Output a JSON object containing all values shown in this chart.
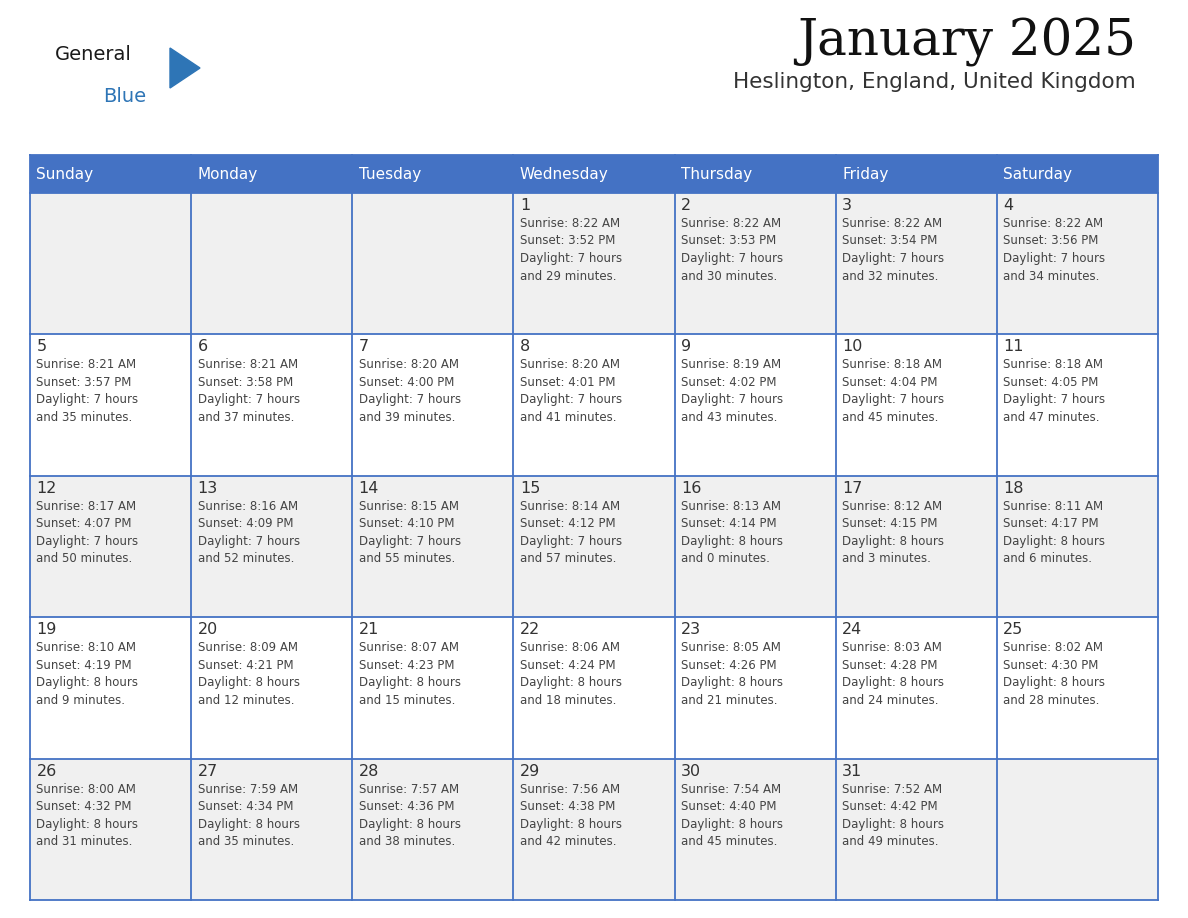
{
  "title": "January 2025",
  "subtitle": "Heslington, England, United Kingdom",
  "header_bg_color": "#4472C4",
  "header_text_color": "#FFFFFF",
  "day_names": [
    "Sunday",
    "Monday",
    "Tuesday",
    "Wednesday",
    "Thursday",
    "Friday",
    "Saturday"
  ],
  "row_bg_colors": [
    "#F0F0F0",
    "#FFFFFF",
    "#F0F0F0",
    "#FFFFFF",
    "#F0F0F0"
  ],
  "border_color": "#4472C4",
  "cell_text_color": "#444444",
  "day_number_color": "#333333",
  "logo_general_color": "#1a1a1a",
  "logo_blue_color": "#2E75B6",
  "logo_triangle_color": "#2E75B6",
  "calendar_data": [
    [
      {
        "day": null,
        "info": ""
      },
      {
        "day": null,
        "info": ""
      },
      {
        "day": null,
        "info": ""
      },
      {
        "day": 1,
        "info": "Sunrise: 8:22 AM\nSunset: 3:52 PM\nDaylight: 7 hours\nand 29 minutes."
      },
      {
        "day": 2,
        "info": "Sunrise: 8:22 AM\nSunset: 3:53 PM\nDaylight: 7 hours\nand 30 minutes."
      },
      {
        "day": 3,
        "info": "Sunrise: 8:22 AM\nSunset: 3:54 PM\nDaylight: 7 hours\nand 32 minutes."
      },
      {
        "day": 4,
        "info": "Sunrise: 8:22 AM\nSunset: 3:56 PM\nDaylight: 7 hours\nand 34 minutes."
      }
    ],
    [
      {
        "day": 5,
        "info": "Sunrise: 8:21 AM\nSunset: 3:57 PM\nDaylight: 7 hours\nand 35 minutes."
      },
      {
        "day": 6,
        "info": "Sunrise: 8:21 AM\nSunset: 3:58 PM\nDaylight: 7 hours\nand 37 minutes."
      },
      {
        "day": 7,
        "info": "Sunrise: 8:20 AM\nSunset: 4:00 PM\nDaylight: 7 hours\nand 39 minutes."
      },
      {
        "day": 8,
        "info": "Sunrise: 8:20 AM\nSunset: 4:01 PM\nDaylight: 7 hours\nand 41 minutes."
      },
      {
        "day": 9,
        "info": "Sunrise: 8:19 AM\nSunset: 4:02 PM\nDaylight: 7 hours\nand 43 minutes."
      },
      {
        "day": 10,
        "info": "Sunrise: 8:18 AM\nSunset: 4:04 PM\nDaylight: 7 hours\nand 45 minutes."
      },
      {
        "day": 11,
        "info": "Sunrise: 8:18 AM\nSunset: 4:05 PM\nDaylight: 7 hours\nand 47 minutes."
      }
    ],
    [
      {
        "day": 12,
        "info": "Sunrise: 8:17 AM\nSunset: 4:07 PM\nDaylight: 7 hours\nand 50 minutes."
      },
      {
        "day": 13,
        "info": "Sunrise: 8:16 AM\nSunset: 4:09 PM\nDaylight: 7 hours\nand 52 minutes."
      },
      {
        "day": 14,
        "info": "Sunrise: 8:15 AM\nSunset: 4:10 PM\nDaylight: 7 hours\nand 55 minutes."
      },
      {
        "day": 15,
        "info": "Sunrise: 8:14 AM\nSunset: 4:12 PM\nDaylight: 7 hours\nand 57 minutes."
      },
      {
        "day": 16,
        "info": "Sunrise: 8:13 AM\nSunset: 4:14 PM\nDaylight: 8 hours\nand 0 minutes."
      },
      {
        "day": 17,
        "info": "Sunrise: 8:12 AM\nSunset: 4:15 PM\nDaylight: 8 hours\nand 3 minutes."
      },
      {
        "day": 18,
        "info": "Sunrise: 8:11 AM\nSunset: 4:17 PM\nDaylight: 8 hours\nand 6 minutes."
      }
    ],
    [
      {
        "day": 19,
        "info": "Sunrise: 8:10 AM\nSunset: 4:19 PM\nDaylight: 8 hours\nand 9 minutes."
      },
      {
        "day": 20,
        "info": "Sunrise: 8:09 AM\nSunset: 4:21 PM\nDaylight: 8 hours\nand 12 minutes."
      },
      {
        "day": 21,
        "info": "Sunrise: 8:07 AM\nSunset: 4:23 PM\nDaylight: 8 hours\nand 15 minutes."
      },
      {
        "day": 22,
        "info": "Sunrise: 8:06 AM\nSunset: 4:24 PM\nDaylight: 8 hours\nand 18 minutes."
      },
      {
        "day": 23,
        "info": "Sunrise: 8:05 AM\nSunset: 4:26 PM\nDaylight: 8 hours\nand 21 minutes."
      },
      {
        "day": 24,
        "info": "Sunrise: 8:03 AM\nSunset: 4:28 PM\nDaylight: 8 hours\nand 24 minutes."
      },
      {
        "day": 25,
        "info": "Sunrise: 8:02 AM\nSunset: 4:30 PM\nDaylight: 8 hours\nand 28 minutes."
      }
    ],
    [
      {
        "day": 26,
        "info": "Sunrise: 8:00 AM\nSunset: 4:32 PM\nDaylight: 8 hours\nand 31 minutes."
      },
      {
        "day": 27,
        "info": "Sunrise: 7:59 AM\nSunset: 4:34 PM\nDaylight: 8 hours\nand 35 minutes."
      },
      {
        "day": 28,
        "info": "Sunrise: 7:57 AM\nSunset: 4:36 PM\nDaylight: 8 hours\nand 38 minutes."
      },
      {
        "day": 29,
        "info": "Sunrise: 7:56 AM\nSunset: 4:38 PM\nDaylight: 8 hours\nand 42 minutes."
      },
      {
        "day": 30,
        "info": "Sunrise: 7:54 AM\nSunset: 4:40 PM\nDaylight: 8 hours\nand 45 minutes."
      },
      {
        "day": 31,
        "info": "Sunrise: 7:52 AM\nSunset: 4:42 PM\nDaylight: 8 hours\nand 49 minutes."
      },
      {
        "day": null,
        "info": ""
      }
    ]
  ]
}
